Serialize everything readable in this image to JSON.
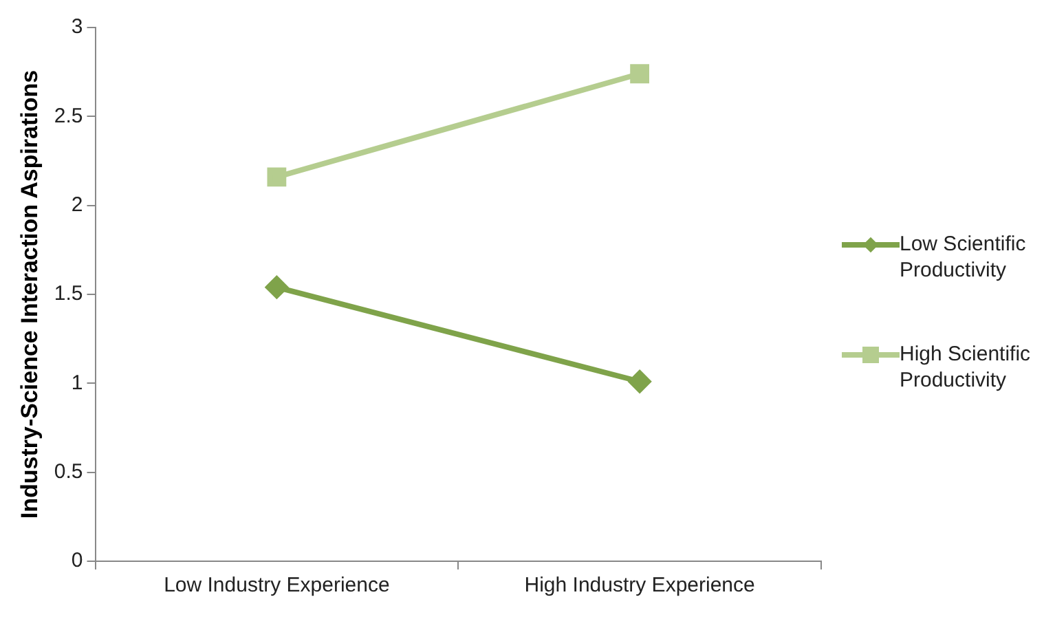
{
  "chart_data": {
    "type": "line",
    "ylabel": "Industry-Science Interaction Aspirations",
    "categories": [
      "Low Industry Experience",
      "High Industry Experience"
    ],
    "series": [
      {
        "name": "Low Scientific Productivity",
        "color": "#7fa34a",
        "values": [
          1.54,
          1.01
        ],
        "marker": "diamond"
      },
      {
        "name": "High Scientific Productivity",
        "color": "#b5cd8f",
        "values": [
          2.16,
          2.74
        ],
        "marker": "square"
      }
    ],
    "ylim": [
      0,
      3
    ],
    "yticks": [
      0,
      0.5,
      1,
      1.5,
      2,
      2.5,
      3
    ],
    "grid": false,
    "legend": "right"
  }
}
